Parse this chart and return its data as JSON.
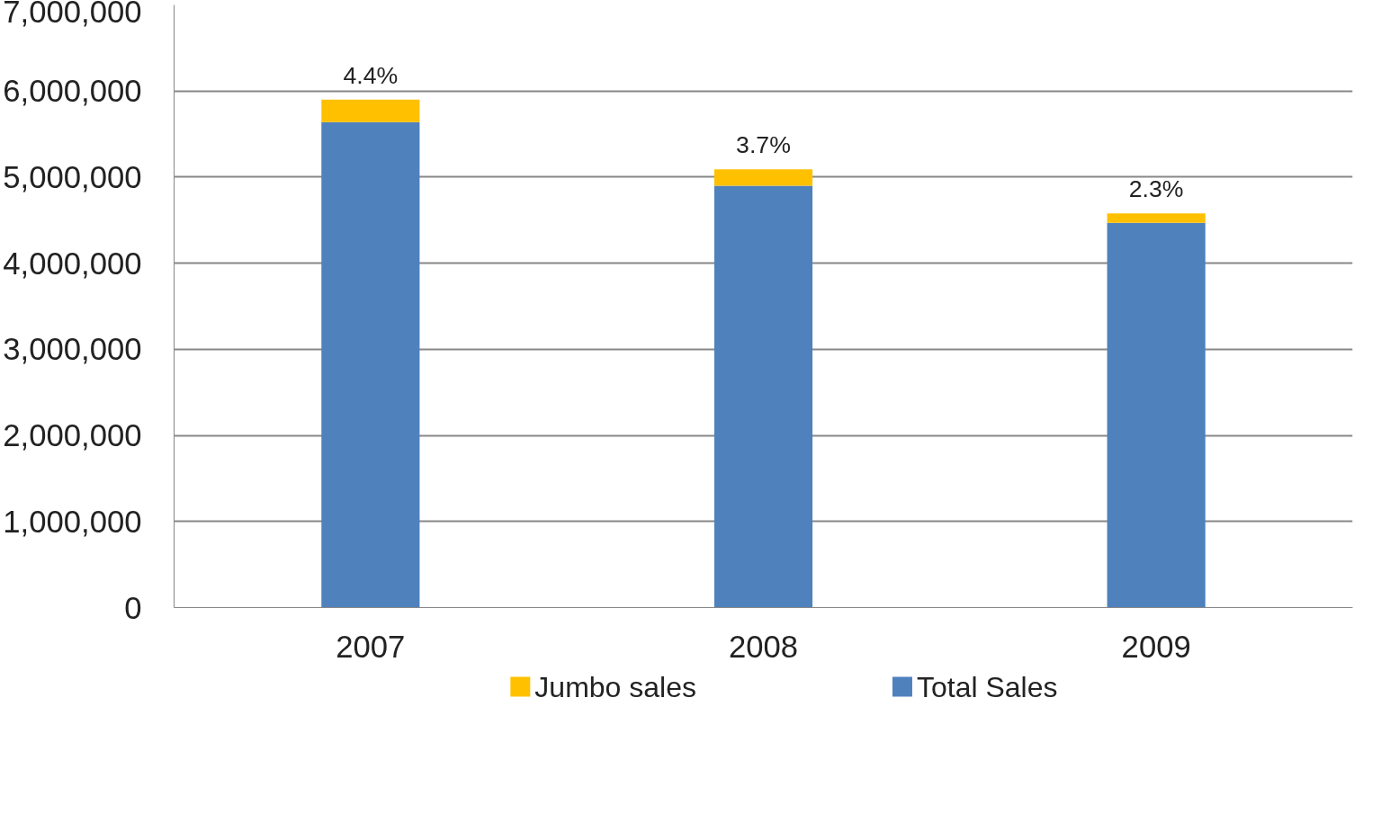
{
  "chart_data": {
    "type": "bar",
    "stacked": true,
    "categories": [
      "2007",
      "2008",
      "2009"
    ],
    "series": [
      {
        "name": "Total Sales",
        "color": "#4f81bd",
        "values": [
          5640000,
          4900000,
          4470000
        ]
      },
      {
        "name": "Jumbo sales",
        "color": "#ffc000",
        "values": [
          260000,
          190000,
          110000
        ]
      }
    ],
    "annotations": [
      {
        "text": "4.4%",
        "x": "2007",
        "y": 5900000
      },
      {
        "text": "3.7%",
        "x": "2008",
        "y": 5090000
      },
      {
        "text": "2.3%",
        "x": "2009",
        "y": 4580000
      }
    ],
    "ylim": [
      0,
      7000000
    ],
    "yticks": [
      {
        "value": 0,
        "label": "0"
      },
      {
        "value": 1000000,
        "label": "1,000,000"
      },
      {
        "value": 2000000,
        "label": "2,000,000"
      },
      {
        "value": 3000000,
        "label": "3,000,000"
      },
      {
        "value": 4000000,
        "label": "4,000,000"
      },
      {
        "value": 5000000,
        "label": "5,000,000"
      },
      {
        "value": 6000000,
        "label": "6,000,000"
      },
      {
        "value": 7000000,
        "label": "7,000,000"
      }
    ],
    "grid": "y",
    "legend": "bottom"
  }
}
